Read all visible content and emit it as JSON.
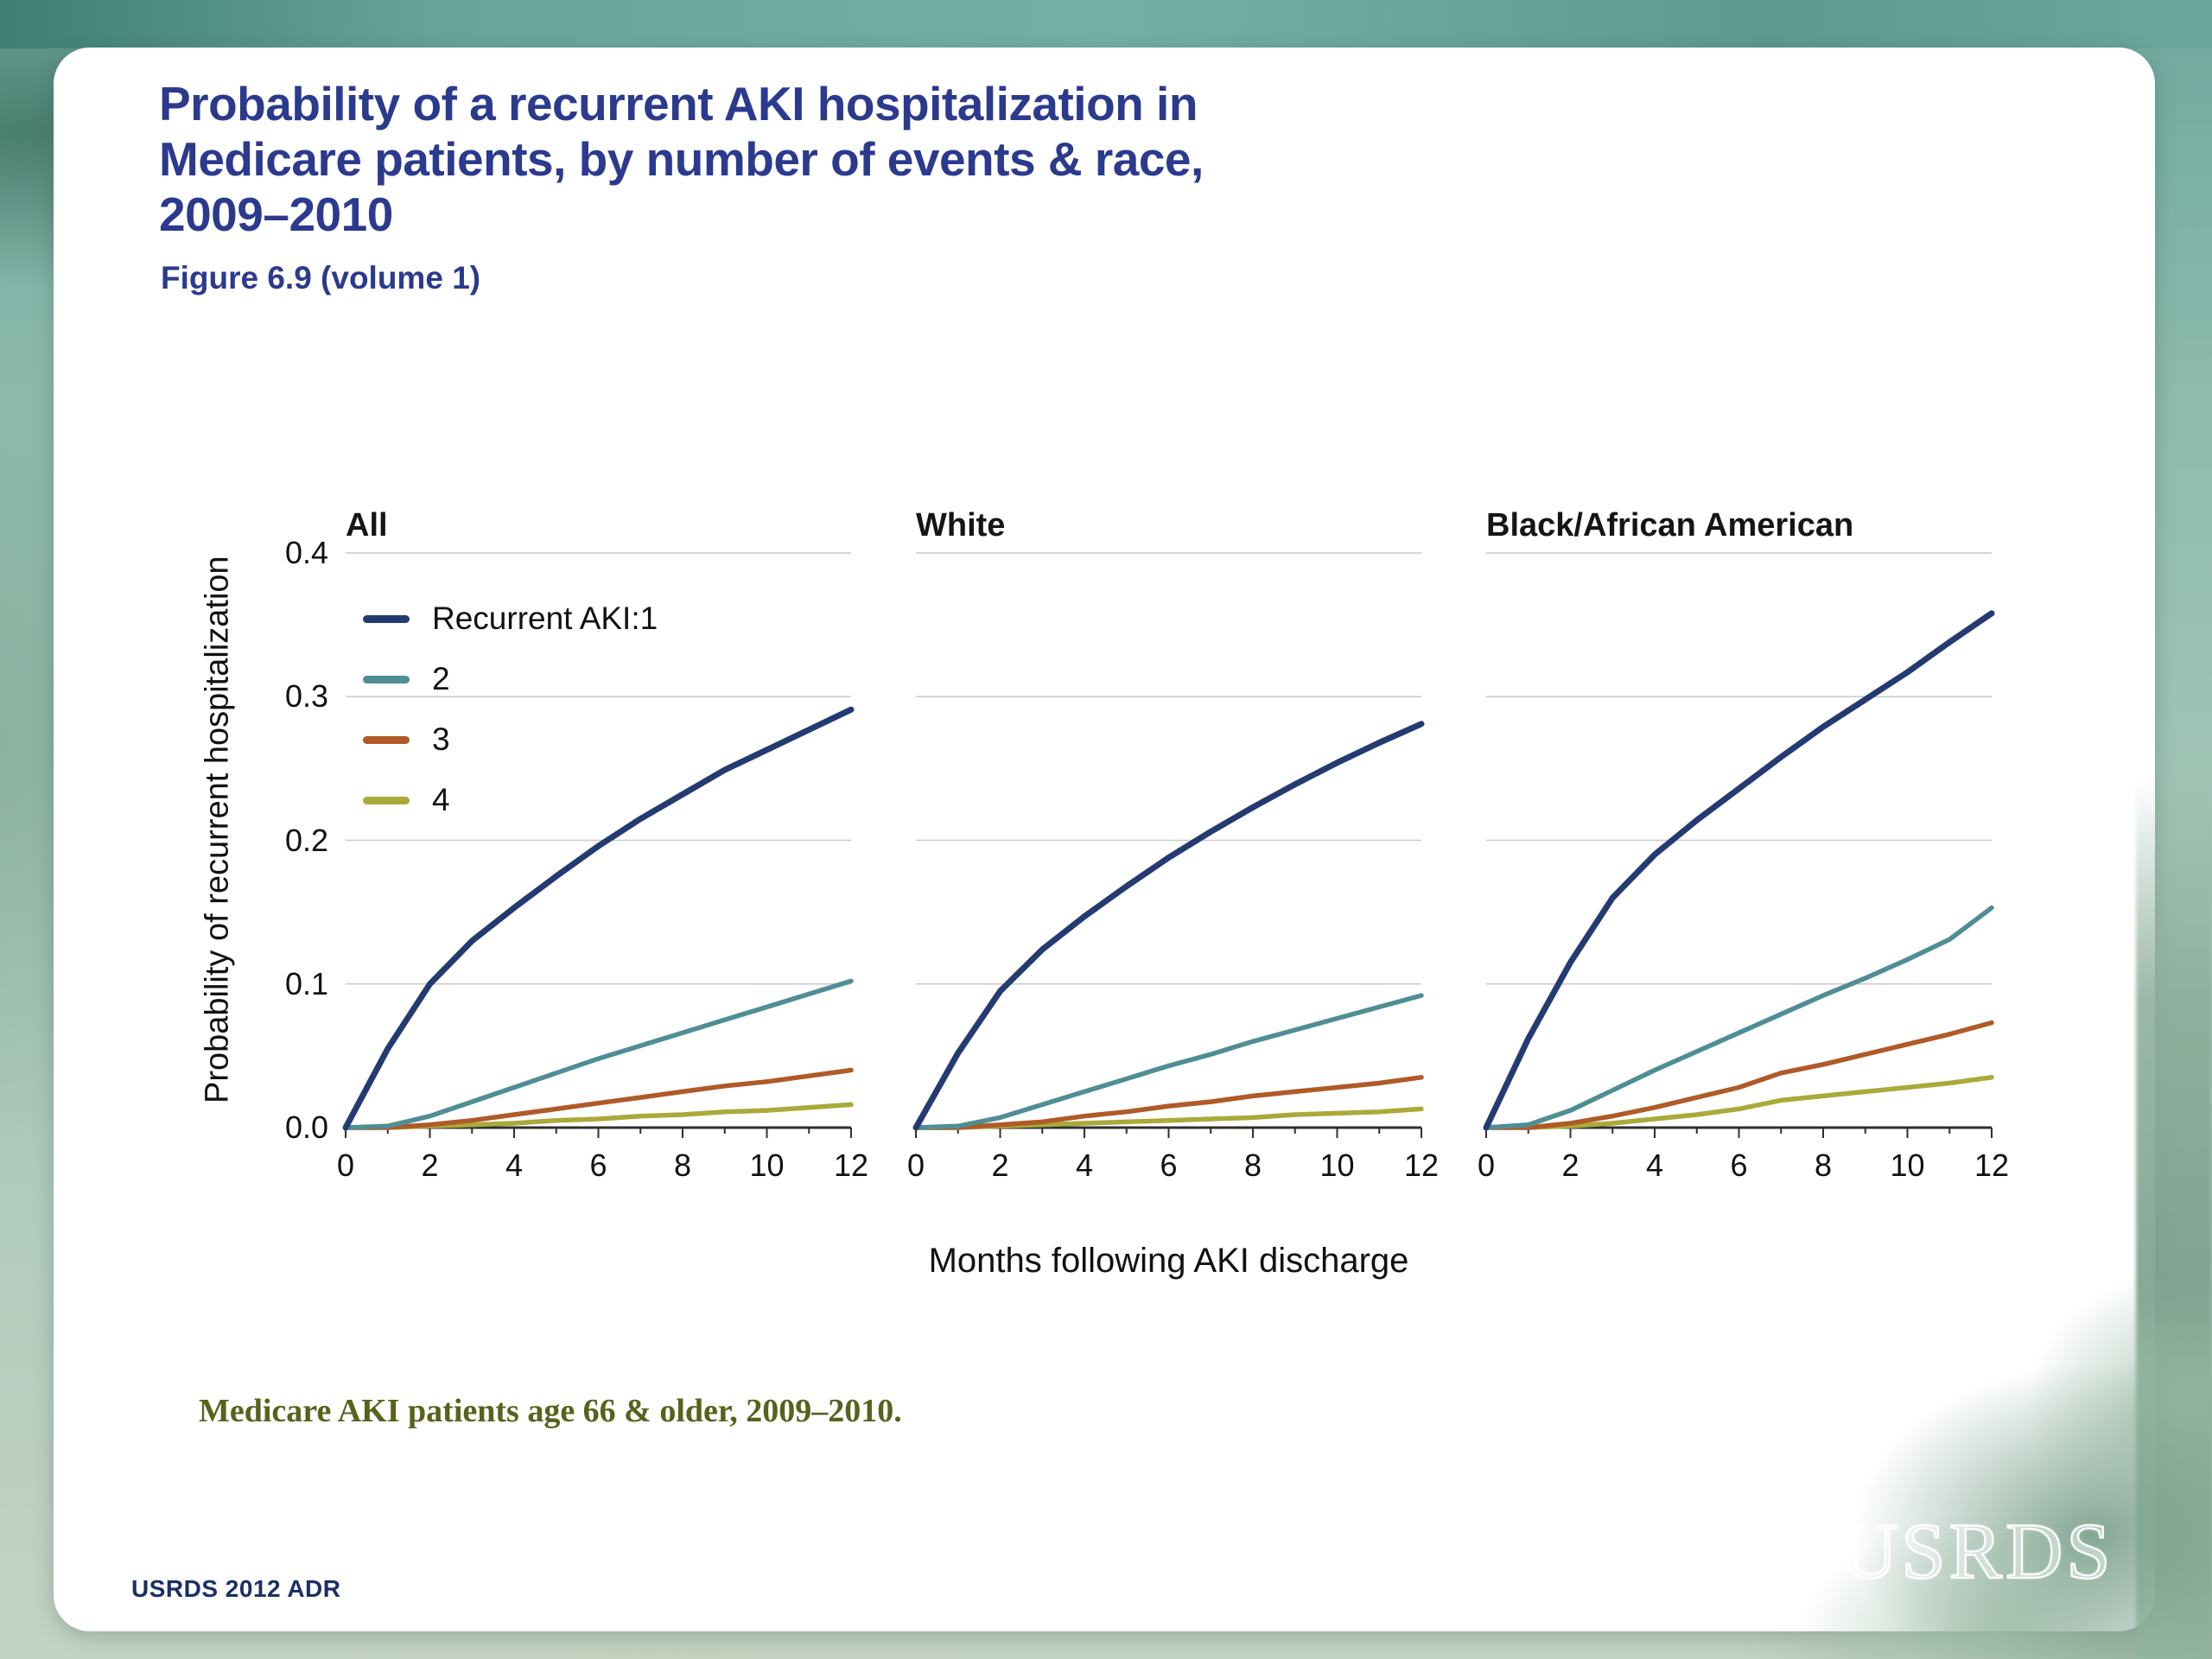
{
  "title": "Probability of a recurrent AKI hospitalization in\nMedicare patients, by number of events & race,\n2009–2010",
  "figure_caption": "Figure 6.9 (volume 1)",
  "footnote": "Medicare AKI patients age 66 & older, 2009–2010.",
  "source": "USRDS 2012 ADR",
  "logo": "USRDS",
  "colors": {
    "title_navy": "#2B3A8E",
    "footnote_olive": "#5A611C",
    "gridline": "#C9C9C9",
    "axis": "#2F2F2F"
  },
  "chart_data": {
    "type": "line",
    "x": [
      0,
      1,
      2,
      3,
      4,
      5,
      6,
      7,
      8,
      9,
      10,
      11,
      12
    ],
    "xticks": [
      0,
      2,
      4,
      6,
      8,
      10,
      12
    ],
    "yticks": [
      0,
      0.1,
      0.2,
      0.3,
      0.4
    ],
    "ylim": [
      0,
      0.4
    ],
    "xlabel": "Months following AKI discharge",
    "ylabel": "Probability of recurrent hospitalization",
    "legend_position": "upper-left of first panel",
    "grid": "horizontal only",
    "series_labels": [
      "Recurrent AKI:1",
      "2",
      "3",
      "4"
    ],
    "colors": [
      "#243B72",
      "#4E8E94",
      "#B05A28",
      "#A9AA3A"
    ],
    "panels": [
      {
        "title": "All",
        "series": [
          {
            "name": "Recurrent AKI:1",
            "values": [
              0,
              0.055,
              0.1,
              0.13,
              0.153,
              0.175,
              0.196,
              0.215,
              0.232,
              0.249,
              0.263,
              0.277,
              0.291
            ]
          },
          {
            "name": "2",
            "values": [
              0,
              0.001,
              0.008,
              0.018,
              0.028,
              0.038,
              0.048,
              0.057,
              0.066,
              0.075,
              0.084,
              0.093,
              0.102
            ]
          },
          {
            "name": "3",
            "values": [
              0,
              0,
              0.002,
              0.005,
              0.009,
              0.013,
              0.017,
              0.021,
              0.025,
              0.029,
              0.032,
              0.036,
              0.04
            ]
          },
          {
            "name": "4",
            "values": [
              0,
              0,
              0.001,
              0.002,
              0.003,
              0.005,
              0.006,
              0.008,
              0.009,
              0.011,
              0.012,
              0.014,
              0.016
            ]
          }
        ]
      },
      {
        "title": "White",
        "series": [
          {
            "name": "Recurrent AKI:1",
            "values": [
              0,
              0.052,
              0.095,
              0.124,
              0.147,
              0.168,
              0.188,
              0.206,
              0.223,
              0.239,
              0.254,
              0.268,
              0.281
            ]
          },
          {
            "name": "2",
            "values": [
              0,
              0.001,
              0.007,
              0.016,
              0.025,
              0.034,
              0.043,
              0.051,
              0.06,
              0.068,
              0.076,
              0.084,
              0.092
            ]
          },
          {
            "name": "3",
            "values": [
              0,
              0,
              0.002,
              0.004,
              0.008,
              0.011,
              0.015,
              0.018,
              0.022,
              0.025,
              0.028,
              0.031,
              0.035
            ]
          },
          {
            "name": "4",
            "values": [
              0,
              0,
              0.001,
              0.002,
              0.003,
              0.004,
              0.005,
              0.006,
              0.007,
              0.009,
              0.01,
              0.011,
              0.013
            ]
          }
        ]
      },
      {
        "title": "Black/African American",
        "series": [
          {
            "name": "Recurrent AKI:1",
            "values": [
              0,
              0.062,
              0.115,
              0.16,
              0.19,
              0.214,
              0.236,
              0.258,
              0.279,
              0.298,
              0.317,
              0.338,
              0.358
            ]
          },
          {
            "name": "2",
            "values": [
              0,
              0.002,
              0.012,
              0.026,
              0.04,
              0.053,
              0.066,
              0.079,
              0.092,
              0.104,
              0.117,
              0.131,
              0.153
            ]
          },
          {
            "name": "3",
            "values": [
              0,
              0,
              0.003,
              0.008,
              0.014,
              0.021,
              0.028,
              0.038,
              0.044,
              0.051,
              0.058,
              0.065,
              0.073
            ]
          },
          {
            "name": "4",
            "values": [
              0,
              0,
              0.001,
              0.003,
              0.006,
              0.009,
              0.013,
              0.019,
              0.022,
              0.025,
              0.028,
              0.031,
              0.035
            ]
          }
        ]
      }
    ]
  }
}
